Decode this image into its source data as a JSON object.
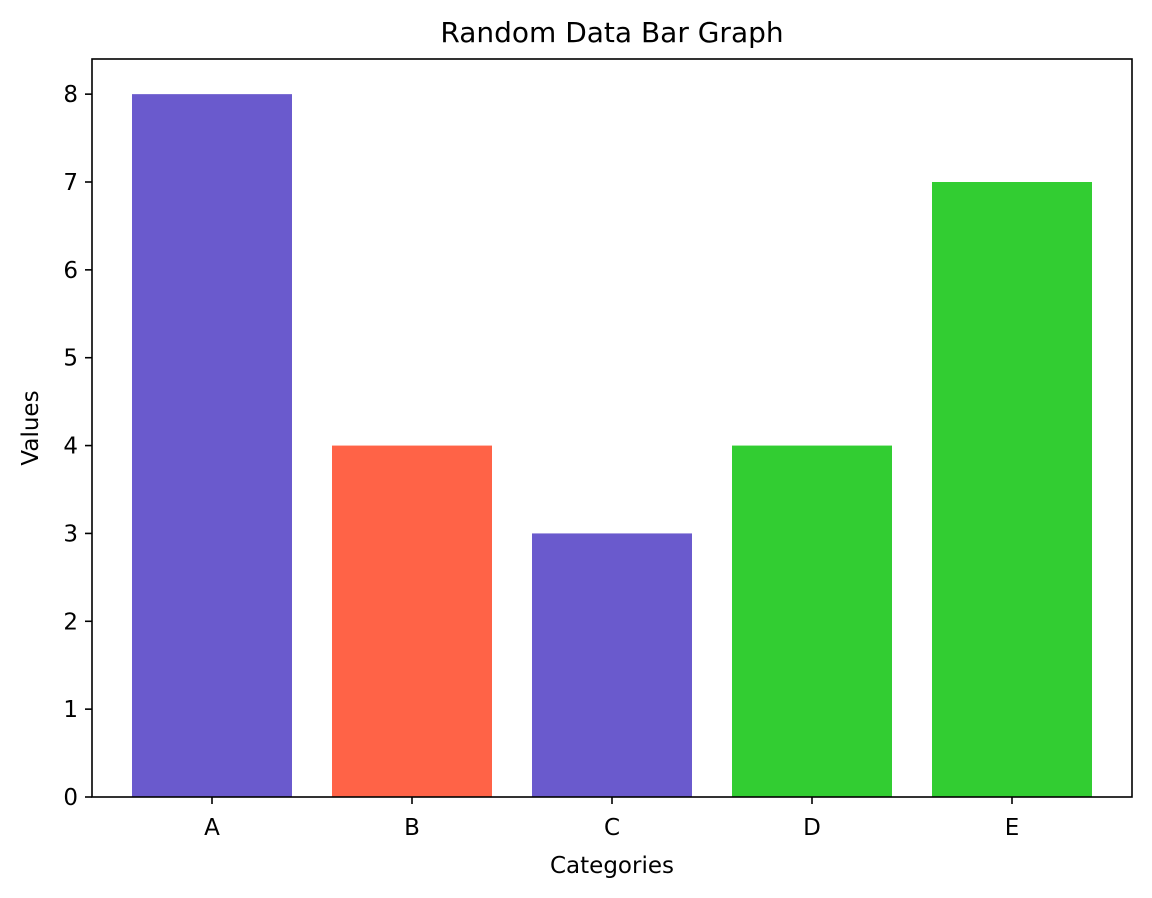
{
  "chart_data": {
    "type": "bar",
    "title": "Random Data Bar Graph",
    "xlabel": "Categories",
    "ylabel": "Values",
    "categories": [
      "A",
      "B",
      "C",
      "D",
      "E"
    ],
    "values": [
      8,
      4,
      3,
      4,
      7
    ],
    "bar_colors": [
      "#6a5acd",
      "#ff6347",
      "#6a5acd",
      "#32cd32",
      "#32cd32"
    ],
    "ylim": [
      0,
      8.4
    ],
    "yticks": [
      "0",
      "1",
      "2",
      "3",
      "4",
      "5",
      "6",
      "7",
      "8"
    ],
    "grid": false,
    "legend": "none"
  }
}
